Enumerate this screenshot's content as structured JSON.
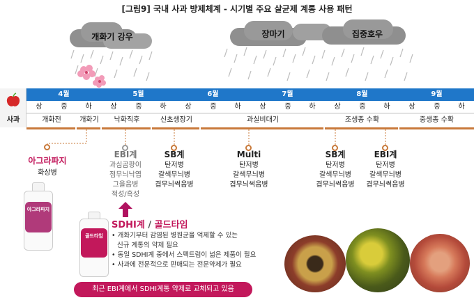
{
  "title": "[그림9] 국내 사과 방제체계 - 시기별 주요 살균제 계통 사용 패턴",
  "weather": {
    "bloom_rain": "개화기 강우",
    "monsoon": "장마기",
    "heavy_rain": "집중호우"
  },
  "crop_label": "사과",
  "months": [
    "4월",
    "5월",
    "6월",
    "7월",
    "8월",
    "9월"
  ],
  "dekads": [
    "상",
    "중",
    "하",
    "상",
    "중",
    "하",
    "상",
    "중",
    "하",
    "상",
    "중",
    "하",
    "상",
    "중",
    "하",
    "상",
    "중",
    "하"
  ],
  "stages": [
    "개화전",
    "개화기",
    "낙화직후",
    "신초생장기",
    "과실비대기",
    "조생종 수확",
    "중생종 수확"
  ],
  "products": {
    "agrapaji": {
      "name": "아그라파지",
      "disease": "화상병"
    },
    "ebi1": {
      "head": "EBI계",
      "lines": [
        "과심곰팡이",
        "점무늬낙엽",
        "그을음병",
        "적성/흑성"
      ]
    },
    "sb1": {
      "head": "SB계",
      "lines": [
        "탄저병",
        "갈색무늬병",
        "겹무늬썩음병"
      ]
    },
    "multi": {
      "head": "Multi",
      "lines": [
        "탄저병",
        "갈색무늬병",
        "겹무늬썩음병"
      ]
    },
    "sb2": {
      "head": "SB계",
      "lines": [
        "탄저병",
        "갈색무늬병",
        "겹무늬썩음병"
      ]
    },
    "ebi2": {
      "head": "EBI계",
      "lines": [
        "탄저병",
        "갈색무늬병",
        "겹무늬썩음병"
      ]
    }
  },
  "sdhi": {
    "head_part1": "SDHI계",
    "slash": " / ",
    "head_part2": "골드타임",
    "bullets": [
      "개화기부터 감염된 병원균을 억제할 수 있는",
      "신규 계통의 약제 필요",
      "동일 SDHI계 중에서 스펙트럼이 넓은 제품이 필요",
      "사과에 전문적으로 판매되는 전문약제가 필요"
    ]
  },
  "banner": "최근 EBI계에서 SDHI계통 약제로 교체되고 있음",
  "bottle_labels": {
    "left": "아그라파지",
    "right": "골드타임"
  },
  "colors": {
    "month_band": "#1f77c9",
    "stage_line": "#c8793a",
    "accent_pink": "#c2185b",
    "cloud": "#9a9a9a"
  }
}
